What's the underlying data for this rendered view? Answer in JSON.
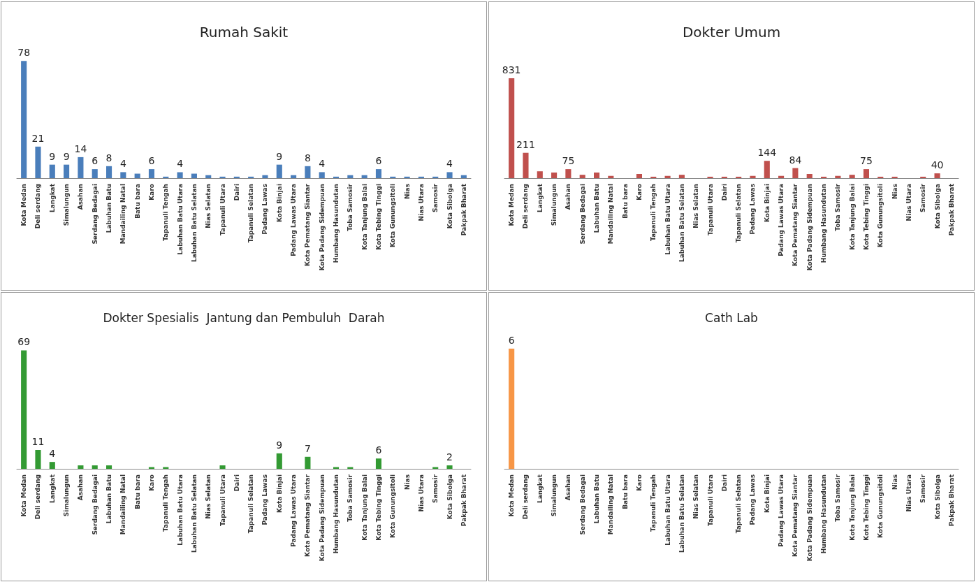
{
  "chart_data": [
    {
      "type": "bar",
      "title": "Rumah Sakit",
      "color": "#4a7ebb",
      "categories": [
        "Kota Medan",
        "Deli serdang",
        "Langkat",
        "Simalungun",
        "Asahan",
        "Serdang Bedagai",
        "Labuhan Batu",
        "Mandailing Natal",
        "Batu bara",
        "Karo",
        "Tapanuli Tengah",
        "Labuhan Batu Utara",
        "Labuhan Batu Selatan",
        "Nias Selatan",
        "Tapanuli Utara",
        "Dairi",
        "Tapanuli Selatan",
        "Padang Lawas",
        "Kota Binjai",
        "Padang Lawas Utara",
        "Kota Pematang Siantar",
        "Kota Padang Sidempuan",
        "Humbang Hasundutan",
        "Toba Samosir",
        "Kota Tanjung Balai",
        "Kota Tebing Tinggi",
        "Kota Gunungsitoli",
        "Nias",
        "Nias Utara",
        "Samosir",
        "Kota Sibolga",
        "Pakpak Bharat"
      ],
      "values": [
        78,
        21,
        9,
        9,
        14,
        6,
        8,
        4,
        3,
        6,
        1,
        4,
        3,
        2,
        1,
        1,
        1,
        2,
        9,
        2,
        8,
        4,
        1,
        2,
        2,
        6,
        1,
        1,
        1,
        1,
        4,
        2
      ],
      "value_labels": [
        "78",
        "21",
        "9",
        "9",
        "14",
        "6",
        "8",
        "4",
        null,
        "6",
        null,
        "4",
        null,
        null,
        null,
        null,
        null,
        null,
        "9",
        null,
        "8",
        "4",
        null,
        null,
        null,
        "6",
        null,
        null,
        null,
        null,
        "4",
        null
      ]
    },
    {
      "type": "bar",
      "title": "Dokter Umum",
      "color": "#c0504d",
      "categories": [
        "Kota Medan",
        "Deli serdang",
        "Langkat",
        "Simalungun",
        "Asahan",
        "Serdang Bedagai",
        "Labuhan Batu",
        "Mandailing Natal",
        "Batu bara",
        "Karo",
        "Tapanuli Tengah",
        "Labuhan Batu Utara",
        "Labuhan Batu Selatan",
        "Nias Selatan",
        "Tapanuli Utara",
        "Dairi",
        "Tapanuli Selatan",
        "Padang Lawas",
        "Kota Binjai",
        "Padang Lawas Utara",
        "Kota Pematang Siantar",
        "Kota Padang Sidempuan",
        "Humbang Hasundutan",
        "Toba Samosir",
        "Kota Tanjung Balai",
        "Kota Tebing Tinggi",
        "Kota Gunungsitoli",
        "Nias",
        "Nias Utara",
        "Samosir",
        "Kota Sibolga",
        "Pakpak Bharat"
      ],
      "values": [
        831,
        211,
        57,
        47,
        75,
        28,
        47,
        19,
        0,
        35,
        12,
        19,
        28,
        0,
        12,
        12,
        12,
        19,
        144,
        19,
        84,
        35,
        12,
        19,
        28,
        75,
        12,
        12,
        0,
        12,
        40,
        0
      ],
      "value_labels": [
        "831",
        "211",
        null,
        null,
        "75",
        null,
        null,
        null,
        null,
        null,
        null,
        null,
        null,
        null,
        null,
        null,
        null,
        null,
        "144",
        null,
        "84",
        null,
        null,
        null,
        null,
        "75",
        null,
        null,
        null,
        null,
        "40",
        null
      ]
    },
    {
      "type": "bar",
      "title": "Dokter Spesialis  Jantung dan Pembuluh  Darah",
      "color": "#339a33",
      "categories": [
        "Kota Medan",
        "Deli serdang",
        "Langkat",
        "Simalungun",
        "Asahan",
        "Serdang Bedagai",
        "Labuhan Batu",
        "Mandailing Natal",
        "Batu bara",
        "Karo",
        "Tapanuli Tengah",
        "Labuhan Batu Utara",
        "Labuhan Batu Selatan",
        "Nias Selatan",
        "Tapanuli Utara",
        "Dairi",
        "Tapanuli Selatan",
        "Padang Lawas",
        "Kota Binjai",
        "Padang Lawas Utara",
        "Kota Pematang Siantar",
        "Kota Padang Sidempuan",
        "Humbang Hasundutan",
        "Toba Samosir",
        "Kota Tanjung Balai",
        "Kota Tebing Tinggi",
        "Kota Gunungsitoli",
        "Nias",
        "Nias Utara",
        "Samosir",
        "Kota Sibolga",
        "Pakpak Bharat"
      ],
      "values": [
        69,
        11,
        4,
        0,
        2,
        2,
        2,
        0,
        0,
        1,
        1,
        0,
        0,
        0,
        2,
        0,
        0,
        0,
        9,
        0,
        7,
        0,
        1,
        1,
        0,
        6,
        0,
        0,
        0,
        1,
        2,
        0
      ],
      "value_labels": [
        "69",
        "11",
        "4",
        null,
        null,
        null,
        null,
        null,
        null,
        null,
        null,
        null,
        null,
        null,
        null,
        null,
        null,
        null,
        "9",
        null,
        "7",
        null,
        null,
        null,
        null,
        "6",
        null,
        null,
        null,
        null,
        "2",
        null
      ]
    },
    {
      "type": "bar",
      "title": "Cath Lab",
      "color": "#f79646",
      "categories": [
        "Kota Medan",
        "Deli serdang",
        "Langkat",
        "Simalungun",
        "Asahan",
        "Serdang Bedagai",
        "Labuhan Batu",
        "Mandailing Natal",
        "Batu bara",
        "Karo",
        "Tapanuli Tengah",
        "Labuhan Batu Utara",
        "Labuhan Batu Selatan",
        "Nias Selatan",
        "Tapanuli Utara",
        "Dairi",
        "Tapanuli Selatan",
        "Padang Lawas",
        "Kota Binjai",
        "Padang Lawas Utara",
        "Kota Pematang Siantar",
        "Kota Padang Sidempuan",
        "Humbang Hasundutan",
        "Toba Samosir",
        "Kota Tanjung Balai",
        "Kota Tebing Tinggi",
        "Kota Gunungsitoli",
        "Nias",
        "Nias Utara",
        "Samosir",
        "Kota Sibolga",
        "Pakpak Bharat"
      ],
      "values": [
        6,
        0,
        0,
        0,
        0,
        0,
        0,
        0,
        0,
        0,
        0,
        0,
        0,
        0,
        0,
        0,
        0,
        0,
        0,
        0,
        0,
        0,
        0,
        0,
        0,
        0,
        0,
        0,
        0,
        0,
        0,
        0
      ],
      "value_labels": [
        "6",
        null,
        null,
        null,
        null,
        null,
        null,
        null,
        null,
        null,
        null,
        null,
        null,
        null,
        null,
        null,
        null,
        null,
        null,
        null,
        null,
        null,
        null,
        null,
        null,
        null,
        null,
        null,
        null,
        null,
        null,
        null
      ]
    }
  ]
}
